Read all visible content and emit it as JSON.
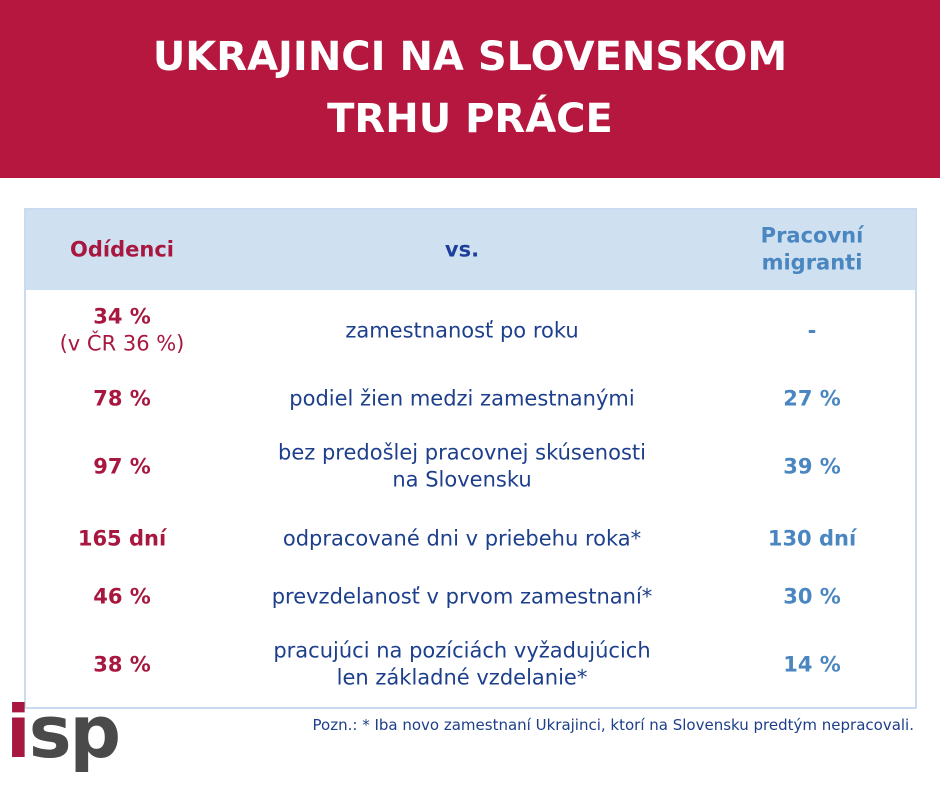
{
  "header": {
    "title_lines": [
      "UKRAJINCI NA SLOVENSKOM",
      "TRHU PRÁCE"
    ]
  },
  "table": {
    "columns": [
      "Odídenci",
      "vs.",
      "Pracovní migranti"
    ],
    "rows": [
      {
        "left": [
          "34 %",
          "(v ČR 36 %)"
        ],
        "label": [
          "zamestnanosť po roku"
        ],
        "right": "-"
      },
      {
        "left": [
          "78 %"
        ],
        "label": [
          "podiel žien medzi zamestnanými"
        ],
        "right": "27 %"
      },
      {
        "left": [
          "97 %"
        ],
        "label": [
          "bez predošlej pracovnej skúsenosti",
          "na Slovensku"
        ],
        "right": "39 %"
      },
      {
        "left": [
          "165 dní"
        ],
        "label": [
          "odpracované dni v priebehu roka*"
        ],
        "right": "130 dní"
      },
      {
        "left": [
          "46 %"
        ],
        "label": [
          "prevzdelanosť v prvom zamestnaní*"
        ],
        "right": "30 %"
      },
      {
        "left": [
          "38 %"
        ],
        "label": [
          "pracujúci na pozíciách vyžadujúcich",
          "len základné vzdelanie*"
        ],
        "right": "14 %"
      }
    ]
  },
  "note": "Pozn.: * Iba novo zamestnaní Ukrajinci, ktorí na Slovensku predtým nepracovali.",
  "logo": {
    "first": "i",
    "rest": "sp"
  }
}
